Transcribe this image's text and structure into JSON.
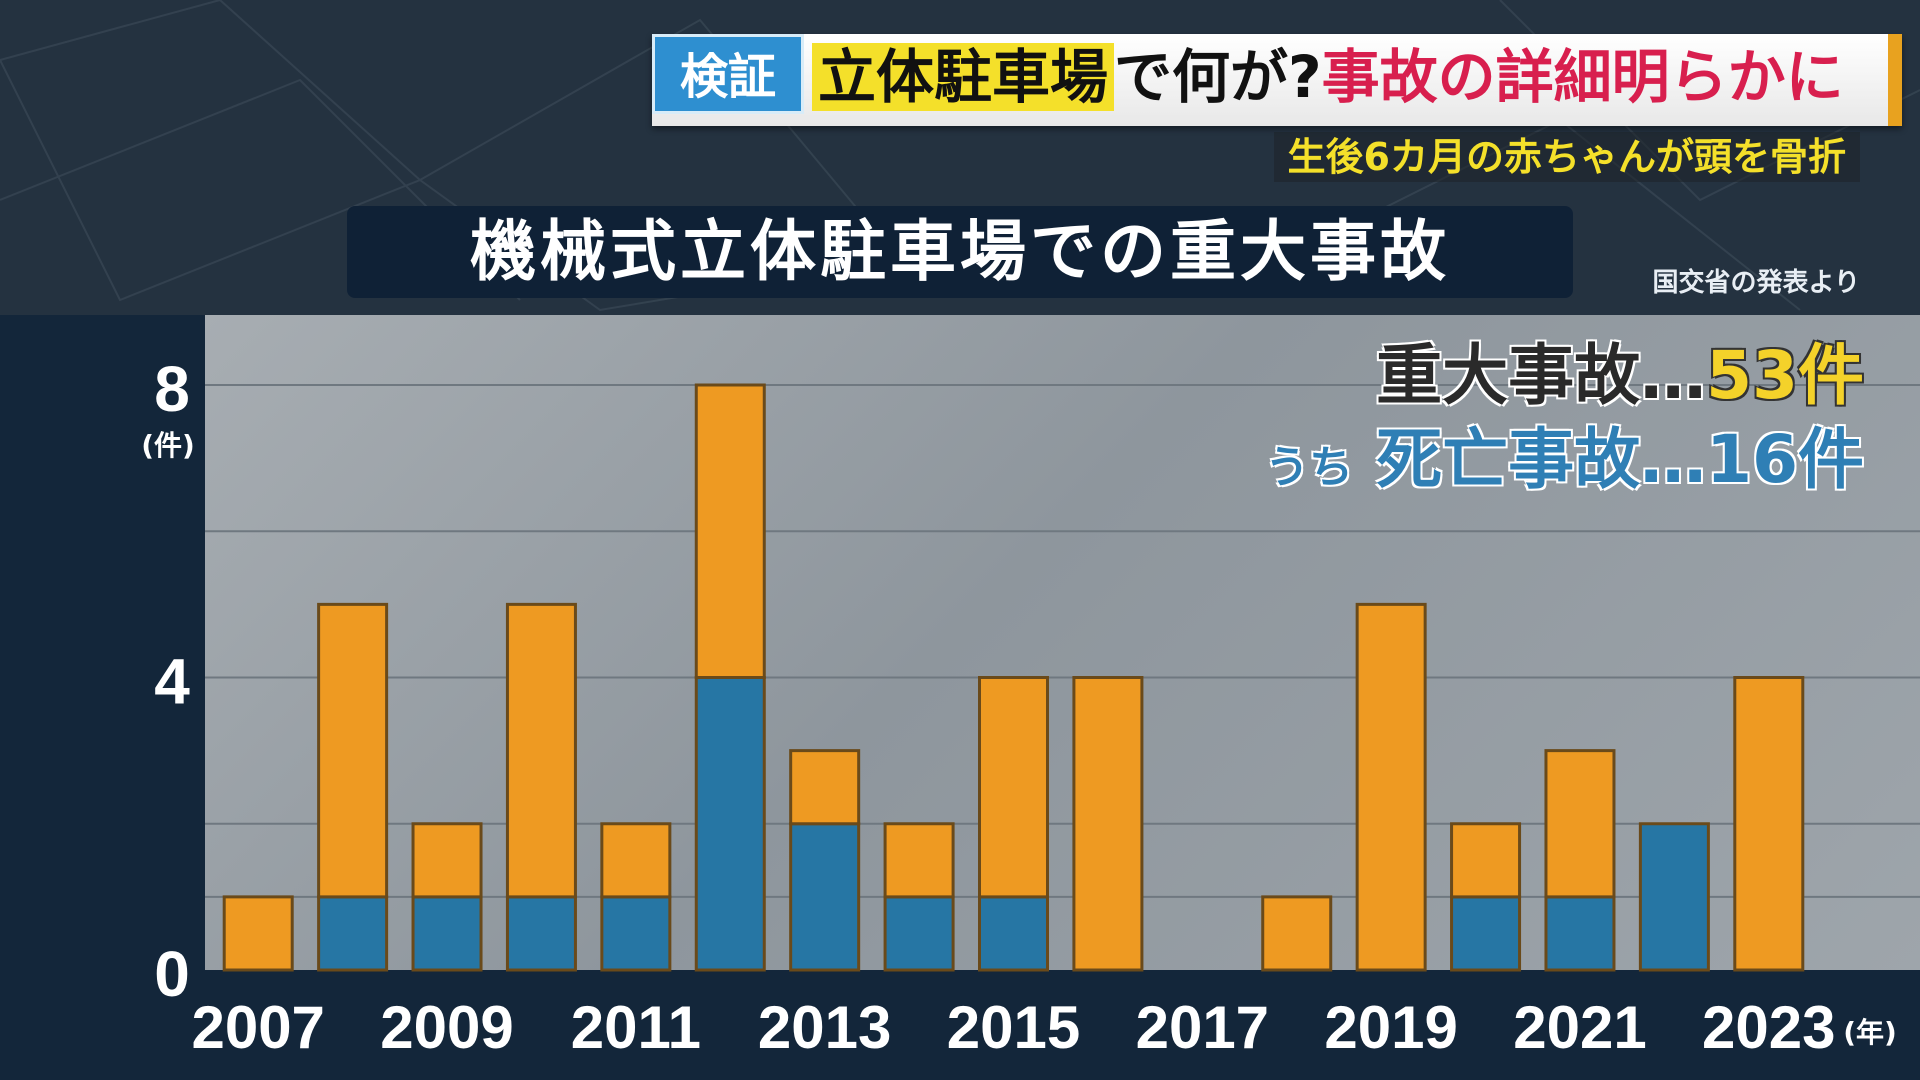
{
  "header": {
    "tag": "検証",
    "topic_highlight": "立体駐車場",
    "topic_middle": "で何が?",
    "topic_red": "事故の詳細明らかに",
    "subtopic": "生後6カ月の赤ちゃんが頭を骨折"
  },
  "source_note": "国交省の発表より",
  "summary": {
    "total_label": "重大事故…",
    "total_value": "53件",
    "fatal_prefix": "うち",
    "fatal_label": "死亡事故…",
    "fatal_value": "16件"
  },
  "colors": {
    "serious": "#ee9a22",
    "fatal": "#2676a4",
    "bar_outline": "#6a4a1a"
  },
  "chart_data": {
    "type": "bar",
    "stacked": true,
    "title": "機械式立体駐車場での重大事故",
    "ylabel": "(件)",
    "xlabel": "(年)",
    "ylim": [
      0,
      8
    ],
    "yticks": [
      "0",
      "4",
      "8"
    ],
    "categories": [
      "2007",
      "2008",
      "2009",
      "2010",
      "2011",
      "2012",
      "2013",
      "2014",
      "2015",
      "2016",
      "2017",
      "2018",
      "2019",
      "2020",
      "2021",
      "2022",
      "2023"
    ],
    "xtick_labels": [
      "2007",
      "2009",
      "2011",
      "2013",
      "2015",
      "2017",
      "2019",
      "2021",
      "2023"
    ],
    "series": [
      {
        "values": [
          0,
          1,
          1,
          1,
          1,
          4,
          2,
          1,
          1,
          0,
          0,
          0,
          0,
          1,
          1,
          2,
          0
        ]
      },
      {
        "values": [
          1,
          4,
          1,
          4,
          1,
          4,
          1,
          1,
          3,
          4,
          0,
          1,
          5,
          1,
          2,
          0,
          4
        ]
      }
    ]
  }
}
